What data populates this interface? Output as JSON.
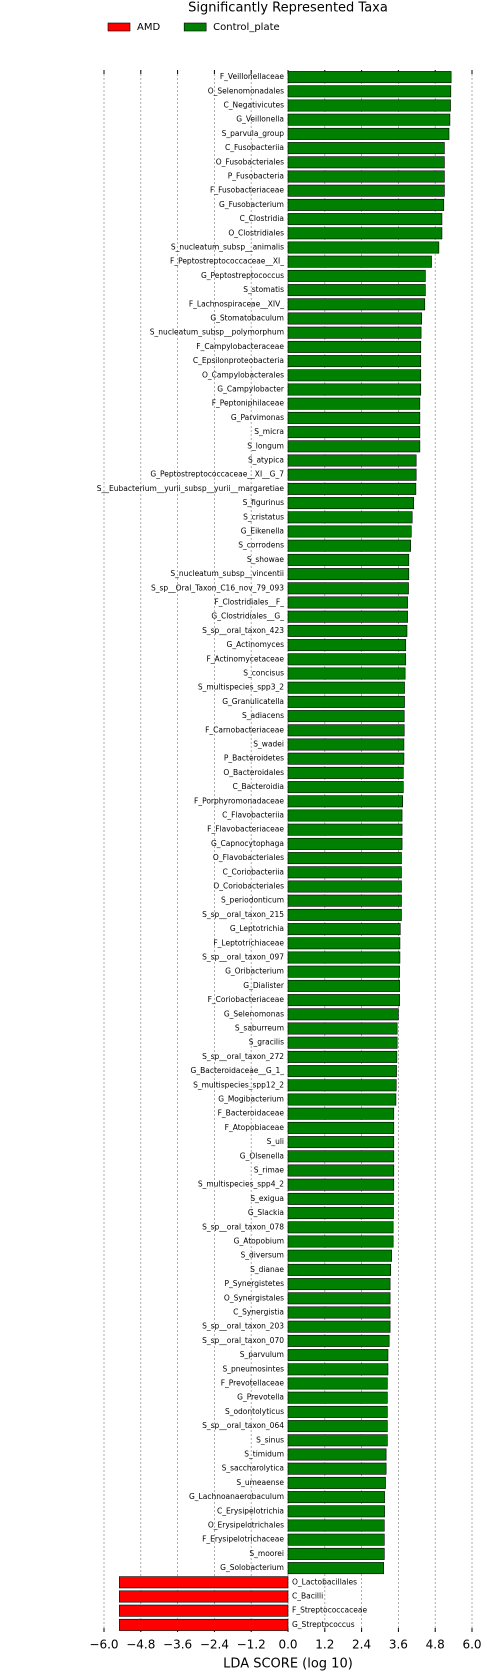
{
  "chart_data": {
    "type": "barh",
    "title": "Significantly Represented Taxa",
    "xlabel": "LDA SCORE (log 10)",
    "categories": [
      "F_Veillonellaceae",
      "O_Selenomonadales",
      "C_Negativicutes",
      "G_Veillonella",
      "S_parvula_group",
      "C_Fusobacteriia",
      "O_Fusobacteriales",
      "P_Fusobacteria",
      "F_Fusobacteriaceae",
      "G_Fusobacterium",
      "C_Clostridia",
      "O_Clostridiales",
      "S_nucleatum_subsp__animalis",
      "F_Peptostreptococcaceae__XI_",
      "G_Peptostreptococcus",
      "S_stomatis",
      "F_Lachnospiraceae__XIV_",
      "G_Stomatobaculum",
      "S_nucleatum_subsp__polymorphum",
      "F_Campylobacteraceae",
      "C_Epsilonproteobacteria",
      "O_Campylobacterales",
      "G_Campylobacter",
      "F_Peptoniphilaceae",
      "G_Parvimonas",
      "S_micra",
      "S_longum",
      "S_atypica",
      "G_Peptostreptococcaceae__XI__G_7",
      "S__Eubacterium__yurii_subsp__yurii__margaretiae",
      "S_figurinus",
      "S_cristatus",
      "G_Eikenella",
      "S_corrodens",
      "S_showae",
      "S_nucleatum_subsp__vincentii",
      "S_sp__Oral_Taxon_C16_nov_79_093",
      "F_Clostridiales__F_",
      "G_Clostridiales__G_",
      "S_sp__oral_taxon_423",
      "G_Actinomyces",
      "F_Actinomycetaceae",
      "S_concisus",
      "S_multispecies_spp3_2",
      "G_Granulicatella",
      "S_adiacens",
      "F_Carnobacteriaceae",
      "S_wadei",
      "P_Bacteroidetes",
      "O_Bacteroidales",
      "C_Bacteroidia",
      "F_Porphyromonadaceae",
      "C_Flavobacteriia",
      "F_Flavobacteriaceae",
      "G_Capnocytophaga",
      "O_Flavobacteriales",
      "C_Coriobacteriia",
      "O_Coriobacteriales",
      "S_periodonticum",
      "S_sp__oral_taxon_215",
      "G_Leptotrichia",
      "F_Leptotrichiaceae",
      "S_sp__oral_taxon_097",
      "G_Oribacterium",
      "G_Dialister",
      "F_Coriobacteriaceae",
      "G_Selenomonas",
      "S_saburreum",
      "S_gracilis",
      "S_sp__oral_taxon_272",
      "G_Bacteroidaceae__G_1_",
      "S_multispecies_spp12_2",
      "G_Mogibacterium",
      "F_Bacteroidaceae",
      "F_Atopobiaceae",
      "S_uli",
      "G_Olsenella",
      "S_rimae",
      "S_multispecies_spp4_2",
      "S_exigua",
      "G_Slackia",
      "S_sp__oral_taxon_078",
      "G_Atopobium",
      "S_diversum",
      "S_dianae",
      "P_Synergistetes",
      "O_Synergistales",
      "C_Synergistia",
      "S_sp__oral_taxon_203",
      "S_sp__oral_taxon_070",
      "S_parvulum",
      "S_pneumosintes",
      "F_Prevotellaceae",
      "G_Prevotella",
      "S_odontolyticus",
      "S_sp__oral_taxon_064",
      "S_sinus",
      "S_timidum",
      "S_saccharolytica",
      "S_umeaense",
      "G_Lachnoanaerobaculum",
      "C_Erysipelotrichia",
      "O_Erysipelotrichales",
      "F_Erysipelotrichaceae",
      "S_moorei",
      "G_Solobacterium",
      "O_Lactobacillales",
      "C_Bacilli",
      "F_Streptococcaceae",
      "G_Streptococcus"
    ],
    "series": [
      {
        "name": "AMD",
        "color": "#ff0000",
        "values": [
          null,
          null,
          null,
          null,
          null,
          null,
          null,
          null,
          null,
          null,
          null,
          null,
          null,
          null,
          null,
          null,
          null,
          null,
          null,
          null,
          null,
          null,
          null,
          null,
          null,
          null,
          null,
          null,
          null,
          null,
          null,
          null,
          null,
          null,
          null,
          null,
          null,
          null,
          null,
          null,
          null,
          null,
          null,
          null,
          null,
          null,
          null,
          null,
          null,
          null,
          null,
          null,
          null,
          null,
          null,
          null,
          null,
          null,
          null,
          null,
          null,
          null,
          null,
          null,
          null,
          null,
          null,
          null,
          null,
          null,
          null,
          null,
          null,
          null,
          null,
          null,
          null,
          null,
          null,
          null,
          null,
          null,
          null,
          null,
          null,
          null,
          null,
          null,
          null,
          null,
          null,
          null,
          null,
          null,
          null,
          null,
          null,
          null,
          null,
          null,
          null,
          null,
          null,
          null,
          null,
          null,
          -5.5,
          -5.5,
          -5.5,
          -5.5
        ]
      },
      {
        "name": "Control_plate",
        "color": "#008000",
        "values": [
          5.32,
          5.31,
          5.3,
          5.28,
          5.25,
          5.1,
          5.1,
          5.1,
          5.1,
          5.08,
          5.02,
          5.02,
          4.92,
          4.68,
          4.48,
          4.48,
          4.46,
          4.36,
          4.34,
          4.33,
          4.33,
          4.33,
          4.33,
          4.3,
          4.3,
          4.3,
          4.3,
          4.18,
          4.18,
          4.17,
          4.1,
          4.05,
          4.02,
          4.0,
          3.94,
          3.94,
          3.93,
          3.9,
          3.9,
          3.88,
          3.84,
          3.84,
          3.82,
          3.8,
          3.8,
          3.79,
          3.79,
          3.78,
          3.78,
          3.76,
          3.76,
          3.74,
          3.72,
          3.72,
          3.72,
          3.7,
          3.7,
          3.7,
          3.7,
          3.7,
          3.66,
          3.65,
          3.65,
          3.64,
          3.64,
          3.64,
          3.6,
          3.56,
          3.56,
          3.55,
          3.54,
          3.53,
          3.52,
          3.45,
          3.45,
          3.45,
          3.45,
          3.45,
          3.45,
          3.44,
          3.44,
          3.43,
          3.43,
          3.38,
          3.35,
          3.33,
          3.33,
          3.33,
          3.33,
          3.3,
          3.26,
          3.26,
          3.24,
          3.24,
          3.24,
          3.24,
          3.24,
          3.2,
          3.2,
          3.18,
          3.15,
          3.15,
          3.14,
          3.14,
          3.14,
          3.12,
          null,
          null,
          null,
          null
        ]
      }
    ],
    "xlim": [
      -6,
      6
    ],
    "xticks": [
      {
        "value": -6,
        "label": "−6.0"
      },
      {
        "value": -4.8,
        "label": "−4.8"
      },
      {
        "value": -3.6,
        "label": "−3.6"
      },
      {
        "value": -2.4,
        "label": "−2.4"
      },
      {
        "value": -1.2,
        "label": "−1.2"
      },
      {
        "value": 0,
        "label": "0.0"
      },
      {
        "value": 1.2,
        "label": "1.2"
      },
      {
        "value": 2.4,
        "label": "2.4"
      },
      {
        "value": 3.6,
        "label": "3.6"
      },
      {
        "value": 4.8,
        "label": "4.8"
      },
      {
        "value": 6,
        "label": "6.0"
      }
    ],
    "grid": true,
    "legend": "upper left"
  }
}
